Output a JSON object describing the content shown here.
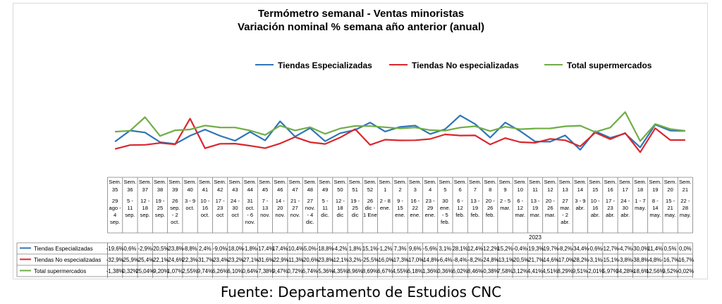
{
  "chart_data": {
    "type": "line",
    "title": "Termómetro semanal - Ventas minoristas",
    "subtitle": "Variación nominal % semana año anterior (anual)",
    "year_label": "2023",
    "legend_placement": "top",
    "grid": false,
    "categories": [
      {
        "week": "Sem. 35",
        "dates": "29 ago - 4 sep."
      },
      {
        "week": "Sem. 36",
        "dates": "5 - 11 sep."
      },
      {
        "week": "Sem. 37",
        "dates": "12 - 18 sep."
      },
      {
        "week": "Sem. 38",
        "dates": "19 - 25 sep."
      },
      {
        "week": "Sem. 39",
        "dates": "26 sep. - 2 oct."
      },
      {
        "week": "Sem. 40",
        "dates": "3 - 9 oct."
      },
      {
        "week": "Sem. 41",
        "dates": "10 - 16 oct."
      },
      {
        "week": "Sem. 42",
        "dates": "17 - 23 oct"
      },
      {
        "week": "Sem. 43",
        "dates": "24 - 30 oct"
      },
      {
        "week": "Sem. 44",
        "dates": "31 oct. - 6 nov."
      },
      {
        "week": "Sem. 45",
        "dates": "7 - 13 nov."
      },
      {
        "week": "Sem. 46",
        "dates": "14 - 20 nov."
      },
      {
        "week": "Sem. 47",
        "dates": "21 - 27 nov."
      },
      {
        "week": "Sem. 48",
        "dates": "27 nov. - 4 dic."
      },
      {
        "week": "Sem. 49",
        "dates": "5 - 11 dic."
      },
      {
        "week": "Sem. 50",
        "dates": "12 - 18 dic"
      },
      {
        "week": "Sem. 51",
        "dates": "19 - 25 dic"
      },
      {
        "week": "Sem. 52",
        "dates": "26 dic - 1 Ene"
      },
      {
        "week": "Sem. 1",
        "dates": "2 - 8 ene."
      },
      {
        "week": "Sem. 2",
        "dates": "9 - 15 ene."
      },
      {
        "week": "Sem. 3",
        "dates": "16 - 22 ene."
      },
      {
        "week": "Sem. 4",
        "dates": "23 - 29 ene."
      },
      {
        "week": "Sem. 5",
        "dates": "30 ene. - 5 feb."
      },
      {
        "week": "Sem. 6",
        "dates": "6 - 12 feb."
      },
      {
        "week": "Sem. 7",
        "dates": "13 - 19 feb."
      },
      {
        "week": "Sem. 8",
        "dates": "20 - 26 feb."
      },
      {
        "week": "Sem. 9",
        "dates": "2 - 5 mar."
      },
      {
        "week": "Sem. 10",
        "dates": "6 - 12 mar."
      },
      {
        "week": "Sem. 11",
        "dates": "13 - 19 mar."
      },
      {
        "week": "Sem. 12",
        "dates": "20 - 26 mar."
      },
      {
        "week": "Sem. 13",
        "dates": "27 mar. - 2 abr."
      },
      {
        "week": "Sem. 14",
        "dates": "3 - 9 abr."
      },
      {
        "week": "Sem. 15",
        "dates": "10 - 16 abr."
      },
      {
        "week": "Sem. 16",
        "dates": "17 - 23 abr."
      },
      {
        "week": "Sem. 17",
        "dates": "24 - 30 abr."
      },
      {
        "week": "Sem. 18",
        "dates": "1 - 7 may."
      },
      {
        "week": "Sem. 19",
        "dates": "8 - 14 may."
      },
      {
        "week": "Sem. 20",
        "dates": "15 - 21 may."
      },
      {
        "week": "Sem. 21",
        "dates": "22 - 28 may."
      }
    ],
    "series": [
      {
        "name": "Tiendas Especializadas",
        "color": "#2e75b6",
        "values": [
          -19.6,
          0.6,
          -2.9,
          -20.5,
          -23.8,
          -8.8,
          2.4,
          -9.0,
          -18.0,
          -1.8,
          -17.4,
          17.4,
          -10.4,
          5.0,
          -18.8,
          -4.2,
          1.8,
          15.1,
          -1.2,
          7.3,
          9.6,
          -5.6,
          3.1,
          28.1,
          12.4,
          -12.2,
          15.2,
          -0.4,
          -19.3,
          -19.7,
          -8.2,
          -34.4,
          -0.6,
          -12.7,
          -4.7,
          -30.0,
          11.4,
          0.5,
          0.0
        ],
        "labels": [
          "-19,6",
          "0,6",
          "-2,9",
          "-20,5",
          "-23,8",
          "-8,8",
          "2,4",
          "-9,0",
          "-18,0",
          "-1,8",
          "-17,4",
          "17,4",
          "-10,4",
          "5,0",
          "-18,8",
          "-4,2",
          "1,8",
          "15,1",
          "-1,2",
          "7,3",
          "9,6",
          "-5,6",
          "3,1",
          "28,1",
          "12,4",
          "-12,2",
          "15,2",
          "-0,4",
          "-19,3",
          "-19,7",
          "-8,2",
          "-34,4",
          "-0,6",
          "-12,7",
          "-4,7",
          "-30,0",
          "11,4",
          "0,5",
          "0,0"
        ]
      },
      {
        "name": "Tiendas No especializadas",
        "color": "#d9272e",
        "values": [
          -32.9,
          -25.9,
          -25.4,
          -22.1,
          -24.6,
          22.3,
          -31.7,
          -23.4,
          -23.2,
          -27.1,
          -31.6,
          -22.9,
          -11.3,
          -20.6,
          -23.8,
          -12.1,
          3.2,
          -25.5,
          -16.0,
          -17.3,
          -17.0,
          -14.8,
          -6.4,
          -8.4,
          -8.2,
          -24.8,
          -13.1,
          -20.5,
          -21.7,
          -14.6,
          -17.0,
          -28.2,
          -3.1,
          -15.1,
          -3.8,
          -38.8,
          4.8,
          -16.7,
          -16.7
        ],
        "labels": [
          "-32,9",
          "-25,9",
          "-25,4",
          "-22,1",
          "-24,6",
          "22,3",
          "-31,7",
          "-23,4",
          "-23,2",
          "-27,1",
          "-31,6",
          "-22,9",
          "-11,3",
          "-20,6",
          "-23,8",
          "-12,1",
          "3,2",
          "-25,5",
          "-16,0",
          "-17,3",
          "-17,0",
          "-14,8",
          "-6,4",
          "-8,4",
          "-8,2",
          "-24,8",
          "-13,1",
          "-20,5",
          "-21,7",
          "-14,6",
          "-17,0",
          "-28,2",
          "-3,1",
          "-15,1",
          "-3,8",
          "-38,8",
          "4,8",
          "-16,7",
          "-16,7"
        ]
      },
      {
        "name": "Total supermercados",
        "color": "#70ad47",
        "values": [
          -1.38,
          0.32,
          25.04,
          -9.2,
          1.07,
          2.55,
          9.74,
          6.26,
          6.1,
          0.64,
          -7.38,
          9.47,
          0.72,
          6.74,
          -5.36,
          4.35,
          8.96,
          8.69,
          6.67,
          4.55,
          6.18,
          1.36,
          0.36,
          6.02,
          8.46,
          -0.38,
          7.58,
          3.12,
          4.41,
          4.51,
          8.29,
          9.51,
          -2.01,
          5.97,
          34.28,
          -18.6,
          12.56,
          3.52,
          -0.02
        ],
        "labels": [
          "-1,38",
          "0,32",
          "25,04",
          "-9,20",
          "1,07",
          "2,55",
          "9,74",
          "6,26",
          "6,10",
          "0,64",
          "-7,38",
          "9,47",
          "0,72",
          "6,74",
          "-5,36",
          "4,35",
          "8,96",
          "8,69",
          "6,67",
          "4,55",
          "6,18",
          "1,36",
          "0,36",
          "6,02",
          "8,46",
          "-0,38",
          "7,58",
          "3,12",
          "4,41",
          "4,51",
          "8,29",
          "9,51",
          "-2,01",
          "5,97",
          "34,28",
          "-18,6",
          "12,56",
          "3,52",
          "-0,02"
        ]
      }
    ]
  },
  "source": "Fuente: Departamento de Estudios CNC"
}
